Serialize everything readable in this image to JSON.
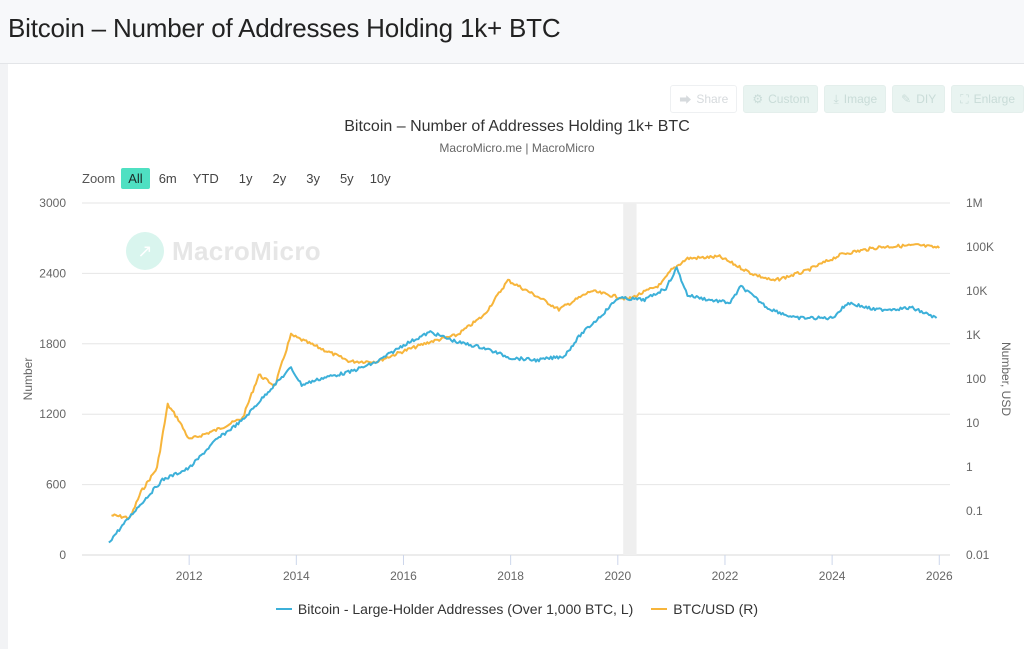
{
  "page": {
    "title": "Bitcoin – Number of Addresses Holding 1k+ BTC"
  },
  "toolbar": {
    "buttons": [
      {
        "label": "Share",
        "icon": "share-icon"
      },
      {
        "label": "Custom",
        "icon": "gear-icon"
      },
      {
        "label": "Image",
        "icon": "download-icon"
      },
      {
        "label": "DIY",
        "icon": "pencil-icon"
      },
      {
        "label": "Enlarge",
        "icon": "expand-icon"
      }
    ]
  },
  "zoom": {
    "label": "Zoom",
    "options": [
      "All",
      "6m",
      "YTD",
      "1y",
      "2y",
      "3y",
      "5y",
      "10y"
    ],
    "active": "All"
  },
  "watermark": {
    "text": "MacroMicro",
    "icon": "macromicro-logo-icon"
  },
  "colors": {
    "addresses": "#3cb0d9",
    "btcusd": "#f7b53b",
    "accent": "#4fe0c2",
    "grid": "#e6e6e6",
    "shade": "#efefef"
  },
  "chart_data": {
    "type": "line",
    "title": "Bitcoin – Number of Addresses Holding 1k+ BTC",
    "subtitle": "MacroMicro.me | MacroMicro",
    "xlabel": "",
    "x_ticks": [
      "2012",
      "2014",
      "2016",
      "2018",
      "2020",
      "2022",
      "2024",
      "2026"
    ],
    "x_range": [
      2010.0,
      2026.2
    ],
    "y_left": {
      "label": "Number",
      "range": [
        0,
        3000
      ],
      "ticks": [
        "0",
        "600",
        "1200",
        "1800",
        "2400",
        "3000"
      ],
      "scale": "linear"
    },
    "y_right": {
      "label": "Number, USD",
      "range": [
        0.01,
        1000000
      ],
      "ticks": [
        "0.01",
        "0.1",
        "1",
        "10",
        "100",
        "1K",
        "10K",
        "100K",
        "1M"
      ],
      "scale": "log"
    },
    "grid": true,
    "legend_position": "bottom-center",
    "shaded_regions": [
      {
        "from": 2020.1,
        "to": 2020.35
      }
    ],
    "series": [
      {
        "name": "Bitcoin - Large-Holder Addresses (Over 1,000 BTC, L)",
        "axis": "left",
        "x": [
          2010.5,
          2011.0,
          2011.5,
          2012.0,
          2012.5,
          2013.0,
          2013.5,
          2013.9,
          2014.1,
          2014.5,
          2015.0,
          2015.5,
          2016.0,
          2016.5,
          2017.0,
          2017.5,
          2018.0,
          2018.5,
          2019.0,
          2019.3,
          2019.7,
          2020.0,
          2020.5,
          2020.9,
          2021.1,
          2021.3,
          2021.7,
          2022.1,
          2022.3,
          2022.8,
          2023.3,
          2024.0,
          2024.3,
          2024.8,
          2025.5,
          2025.95
        ],
        "values": [
          110,
          385,
          640,
          740,
          980,
          1150,
          1405,
          1595,
          1450,
          1510,
          1560,
          1645,
          1790,
          1900,
          1815,
          1765,
          1680,
          1660,
          1695,
          1875,
          2045,
          2190,
          2175,
          2275,
          2445,
          2215,
          2175,
          2150,
          2290,
          2105,
          2020,
          2020,
          2150,
          2090,
          2105,
          2020
        ]
      },
      {
        "name": "BTC/USD (R)",
        "axis": "right",
        "x": [
          2010.55,
          2010.9,
          2011.1,
          2011.4,
          2011.6,
          2011.8,
          2012.0,
          2012.5,
          2013.0,
          2013.3,
          2013.6,
          2013.9,
          2014.3,
          2015.0,
          2015.5,
          2016.0,
          2016.5,
          2017.0,
          2017.5,
          2017.95,
          2018.5,
          2018.9,
          2019.5,
          2020.2,
          2020.8,
          2021.0,
          2021.3,
          2021.9,
          2022.5,
          2022.9,
          2023.5,
          2024.2,
          2024.9,
          2025.6,
          2026.0
        ],
        "values": [
          0.08,
          0.07,
          0.27,
          0.95,
          26,
          12,
          4.2,
          6.9,
          13,
          125,
          70,
          1000,
          600,
          250,
          250,
          430,
          700,
          1000,
          2800,
          17500,
          7500,
          3800,
          10000,
          6500,
          14000,
          30000,
          55000,
          60000,
          25000,
          17000,
          28000,
          70000,
          100000,
          110000,
          95000
        ]
      }
    ]
  }
}
